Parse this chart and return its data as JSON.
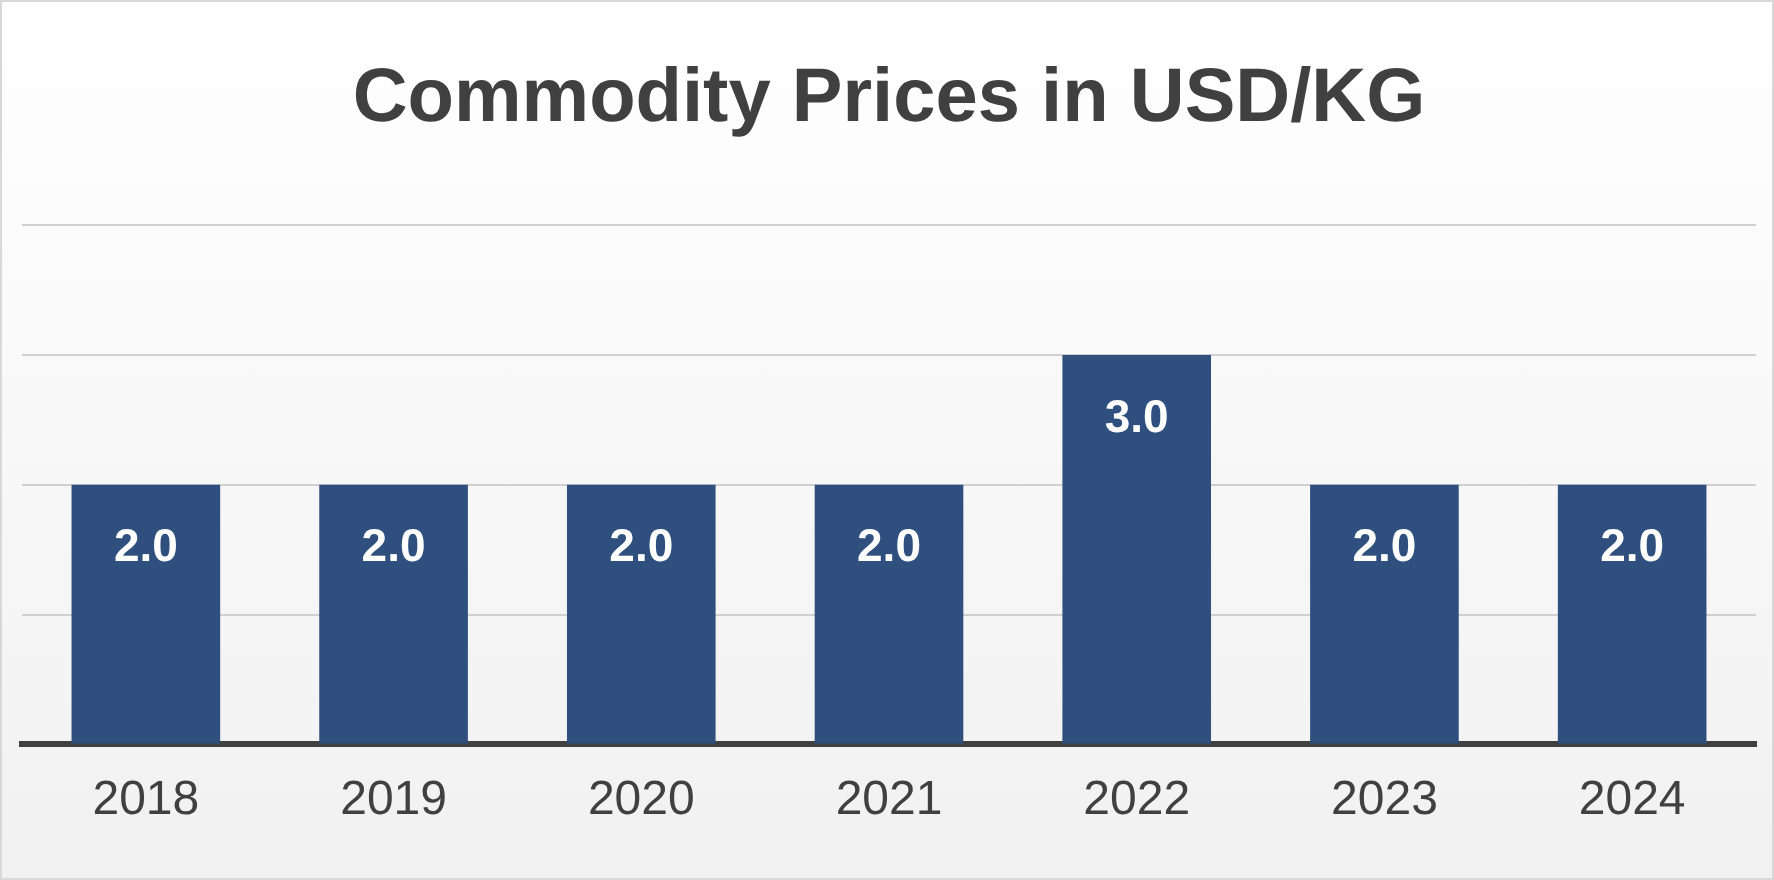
{
  "chart_data": {
    "type": "bar",
    "title": "Commodity Prices in USD/KG",
    "categories": [
      "2018",
      "2019",
      "2020",
      "2021",
      "2022",
      "2023",
      "2024"
    ],
    "values": [
      2.0,
      2.0,
      2.0,
      2.0,
      3.0,
      2.0,
      2.0
    ],
    "value_labels": [
      "2.0",
      "2.0",
      "2.0",
      "2.0",
      "3.0",
      "2.0",
      "2.0"
    ],
    "color": "#2f4f7e",
    "ylim": [
      0,
      4
    ],
    "yticks": [
      {
        "value": 0,
        "label": null
      },
      {
        "value": 1,
        "label": null
      },
      {
        "value": 2,
        "label": null
      },
      {
        "value": 3,
        "label": null
      },
      {
        "value": 4,
        "label": null
      }
    ],
    "grid": "y",
    "tick_labels": "x",
    "legend": false
  }
}
